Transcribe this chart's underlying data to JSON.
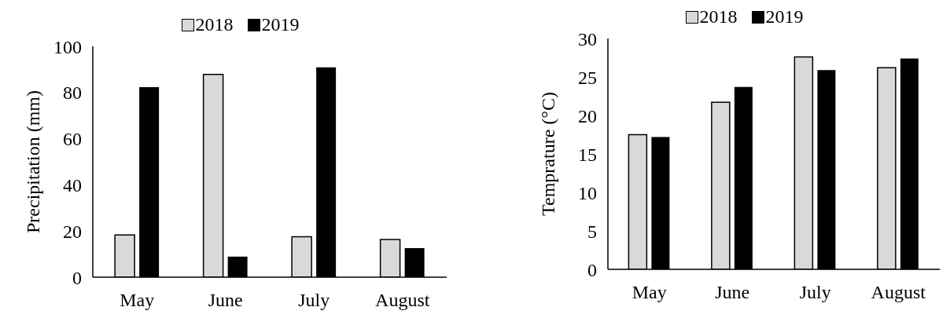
{
  "chart_data": [
    {
      "type": "bar",
      "ylabel": "Precipitation (mm)",
      "categories": [
        "May",
        "June",
        "July",
        "August"
      ],
      "series": [
        {
          "name": "2018",
          "color": "#d9d9d9",
          "values": [
            18.3,
            87.8,
            17.5,
            16.3
          ]
        },
        {
          "name": "2019",
          "color": "#000000",
          "values": [
            82.3,
            8.9,
            90.9,
            12.6
          ]
        }
      ],
      "ylim": [
        0,
        100
      ],
      "yticks": [
        0,
        20,
        40,
        60,
        80,
        100
      ],
      "grid": false,
      "legend": "top"
    },
    {
      "type": "bar",
      "ylabel": "Temprature (°C)",
      "categories": [
        "May",
        "June",
        "July",
        "August"
      ],
      "series": [
        {
          "name": "2018",
          "color": "#d9d9d9",
          "values": [
            17.5,
            21.7,
            27.6,
            26.2
          ]
        },
        {
          "name": "2019",
          "color": "#000000",
          "values": [
            17.2,
            23.7,
            25.9,
            27.4
          ]
        }
      ],
      "ylim": [
        0,
        30
      ],
      "yticks": [
        0,
        5,
        10,
        15,
        20,
        25,
        30
      ],
      "grid": false,
      "legend": "top"
    }
  ]
}
